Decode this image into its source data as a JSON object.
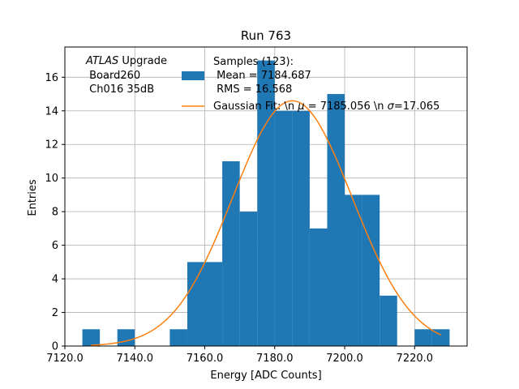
{
  "chart_data": {
    "type": "bar",
    "title": "Run 763",
    "xlabel": "Energy [ADC Counts]",
    "ylabel": "Entries",
    "xlim": [
      7120,
      7235
    ],
    "ylim": [
      0,
      17.8
    ],
    "grid": true,
    "x_tick_values": [
      7120,
      7140,
      7160,
      7180,
      7200,
      7220
    ],
    "x_tick_labels": [
      "7120.0",
      "7140.0",
      "7160.0",
      "7180.0",
      "7200.0",
      "7220.0"
    ],
    "y_tick_values": [
      0,
      2,
      4,
      6,
      8,
      10,
      12,
      14,
      16
    ],
    "y_tick_labels": [
      "0",
      "2",
      "4",
      "6",
      "8",
      "10",
      "12",
      "14",
      "16"
    ],
    "bin_width": 5,
    "bins": [
      {
        "x0": 7125,
        "count": 1
      },
      {
        "x0": 7130,
        "count": 0
      },
      {
        "x0": 7135,
        "count": 1
      },
      {
        "x0": 7140,
        "count": 0
      },
      {
        "x0": 7145,
        "count": 0
      },
      {
        "x0": 7150,
        "count": 1
      },
      {
        "x0": 7155,
        "count": 5
      },
      {
        "x0": 7160,
        "count": 5
      },
      {
        "x0": 7165,
        "count": 11
      },
      {
        "x0": 7170,
        "count": 8
      },
      {
        "x0": 7175,
        "count": 17
      },
      {
        "x0": 7180,
        "count": 14
      },
      {
        "x0": 7185,
        "count": 14
      },
      {
        "x0": 7190,
        "count": 7
      },
      {
        "x0": 7195,
        "count": 15
      },
      {
        "x0": 7200,
        "count": 9
      },
      {
        "x0": 7205,
        "count": 9
      },
      {
        "x0": 7210,
        "count": 3
      },
      {
        "x0": 7215,
        "count": 0
      },
      {
        "x0": 7220,
        "count": 1
      },
      {
        "x0": 7225,
        "count": 1
      }
    ],
    "fit": {
      "mu": 7185.056,
      "sigma": 17.065,
      "amplitude": 14.6,
      "x_range": [
        7127.5,
        7227.5
      ]
    },
    "colors": {
      "bars": "#1f77b4",
      "fit": "#ff7f0e",
      "grid": "#b0b0b0"
    },
    "annotation": {
      "atlas_italic": "ATLAS",
      "atlas_rest": " Upgrade",
      "line2": " Board260",
      "line3": " Ch016 35dB"
    },
    "legend": {
      "placement": "top-right",
      "hist_line1": "Samples (123):",
      "hist_line2": " Mean = 7184.687",
      "hist_line3": " RMS = 16.568",
      "fit_label": "Gaussian Fit: \\n $\\mu$ = 7185.056 \\n $\\sigma$=17.065"
    }
  }
}
